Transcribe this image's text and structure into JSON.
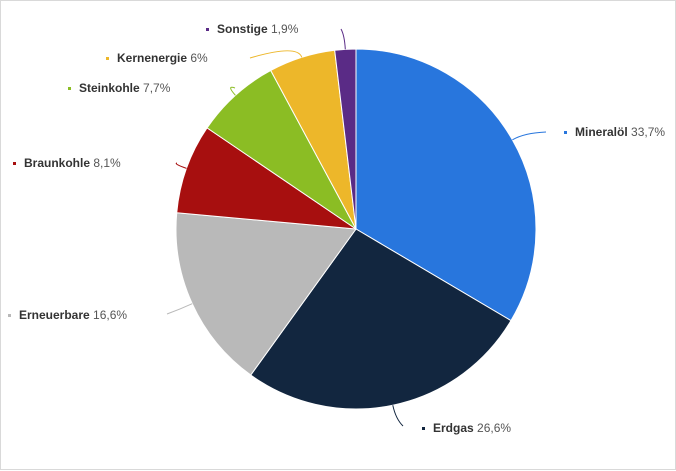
{
  "chart_data": {
    "type": "pie",
    "categories": [
      "Mineralöl",
      "Erdgas",
      "Erneuerbare",
      "Braunkohle",
      "Steinkohle",
      "Kernenergie",
      "Sonstige"
    ],
    "values": [
      33.7,
      26.6,
      16.6,
      8.1,
      7.7,
      6.0,
      1.9
    ],
    "value_labels": [
      "33,7%",
      "26,6%",
      "16,6%",
      "8,1%",
      "7,7%",
      "6%",
      "1,9%"
    ],
    "colors": [
      "#2876dd",
      "#12263f",
      "#b9b9b9",
      "#a70f0f",
      "#8bbd24",
      "#edb72a",
      "#5a2b86"
    ],
    "start_angle_deg": 0,
    "direction": "clockwise",
    "legend": "labels-outside"
  }
}
